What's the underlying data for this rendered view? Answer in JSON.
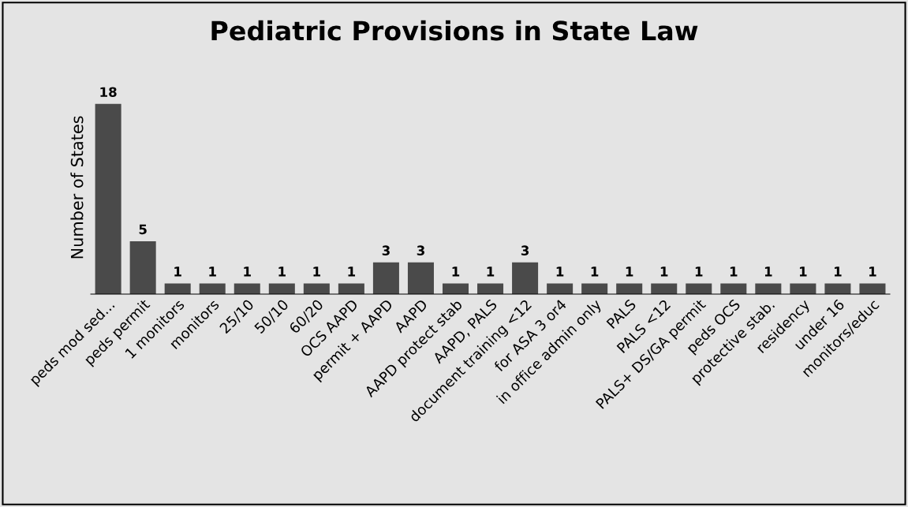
{
  "chart_data": {
    "type": "bar",
    "title": "Pediatric Provisions in State Law",
    "ylabel": "Number of States",
    "categories": [
      "peds mod sed...",
      "peds permit",
      "1 monitors",
      "monitors",
      "25/10",
      "50/10",
      "60/20",
      "OCS AAPD",
      "permit + AAPD",
      "AAPD",
      "AAPD protect stab",
      "AAPD, PALS",
      "document training <12",
      "for ASA 3 or4",
      "in office admin only",
      "PALS",
      "PALS <12",
      "PALS+ DS/GA permit",
      "peds OCS",
      "protective stab.",
      "residency",
      "under 16",
      "monitors/educ"
    ],
    "values": [
      18,
      5,
      1,
      1,
      1,
      1,
      1,
      1,
      3,
      3,
      1,
      1,
      3,
      1,
      1,
      1,
      1,
      1,
      1,
      1,
      1,
      1,
      1
    ],
    "color": "#4a4a4a",
    "data_labels": true,
    "grid": false,
    "legend": false
  }
}
